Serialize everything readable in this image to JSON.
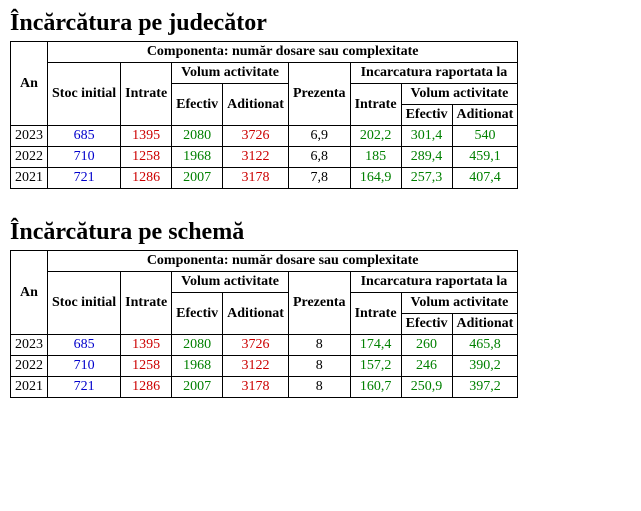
{
  "colors": {
    "year": "#000000",
    "stoc": "#0000cc",
    "intrate": "#cc0000",
    "vol_ef": "#008000",
    "vol_ad": "#cc0000",
    "prezenta": "#000000",
    "inc_intrate": "#008000",
    "inc_vol_ef": "#008000",
    "inc_vol_ad": "#008000"
  },
  "tables": [
    {
      "title": "Încărcătura pe judecător",
      "headers": {
        "an": "An",
        "componenta": "Componenta: număr dosare sau complexitate",
        "stoc": "Stoc initial",
        "intrate": "Intrate",
        "volum": "Volum activitate",
        "vol_ef": "Efectiv",
        "vol_ad": "Aditionat",
        "prezenta": "Prezenta",
        "incarc": "Incarcatura raportata la",
        "inc_intrate": "Intrate",
        "inc_vol": "Volum activitate",
        "inc_vol_ef": "Efectiv",
        "inc_vol_ad": "Aditionat"
      },
      "rows": [
        {
          "year": "2023",
          "stoc": "685",
          "intrate": "1395",
          "vol_ef": "2080",
          "vol_ad": "3726",
          "prezenta": "6,9",
          "inc_intrate": "202,2",
          "inc_vol_ef": "301,4",
          "inc_vol_ad": "540"
        },
        {
          "year": "2022",
          "stoc": "710",
          "intrate": "1258",
          "vol_ef": "1968",
          "vol_ad": "3122",
          "prezenta": "6,8",
          "inc_intrate": "185",
          "inc_vol_ef": "289,4",
          "inc_vol_ad": "459,1"
        },
        {
          "year": "2021",
          "stoc": "721",
          "intrate": "1286",
          "vol_ef": "2007",
          "vol_ad": "3178",
          "prezenta": "7,8",
          "inc_intrate": "164,9",
          "inc_vol_ef": "257,3",
          "inc_vol_ad": "407,4"
        }
      ]
    },
    {
      "title": "Încărcătura pe schemă",
      "headers": {
        "an": "An",
        "componenta": "Componenta: număr dosare sau complexitate",
        "stoc": "Stoc initial",
        "intrate": "Intrate",
        "volum": "Volum activitate",
        "vol_ef": "Efectiv",
        "vol_ad": "Aditionat",
        "prezenta": "Prezenta",
        "incarc": "Incarcatura raportata la",
        "inc_intrate": "Intrate",
        "inc_vol": "Volum activitate",
        "inc_vol_ef": "Efectiv",
        "inc_vol_ad": "Aditionat"
      },
      "rows": [
        {
          "year": "2023",
          "stoc": "685",
          "intrate": "1395",
          "vol_ef": "2080",
          "vol_ad": "3726",
          "prezenta": "8",
          "inc_intrate": "174,4",
          "inc_vol_ef": "260",
          "inc_vol_ad": "465,8"
        },
        {
          "year": "2022",
          "stoc": "710",
          "intrate": "1258",
          "vol_ef": "1968",
          "vol_ad": "3122",
          "prezenta": "8",
          "inc_intrate": "157,2",
          "inc_vol_ef": "246",
          "inc_vol_ad": "390,2"
        },
        {
          "year": "2021",
          "stoc": "721",
          "intrate": "1286",
          "vol_ef": "2007",
          "vol_ad": "3178",
          "prezenta": "8",
          "inc_intrate": "160,7",
          "inc_vol_ef": "250,9",
          "inc_vol_ad": "397,2"
        }
      ]
    }
  ]
}
